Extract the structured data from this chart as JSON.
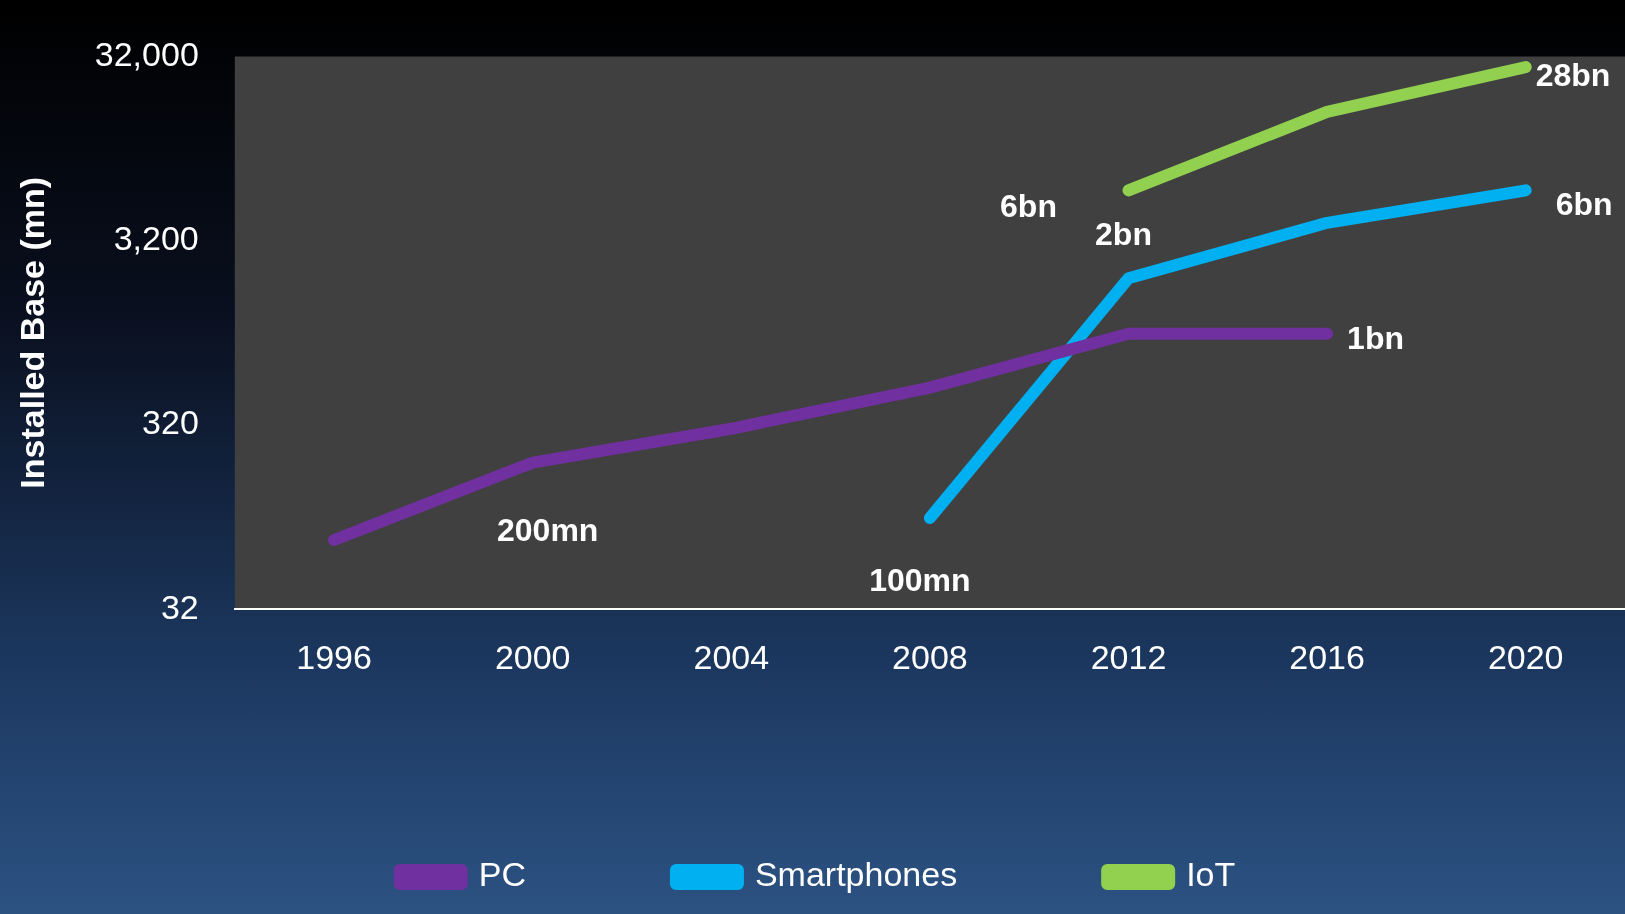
{
  "chart_data": {
    "type": "line",
    "ylabel": "Installed Base (mn)",
    "log": true,
    "xlim": [
      1994,
      2022
    ],
    "xticks": [
      1996,
      2000,
      2004,
      2008,
      2012,
      2016,
      2020
    ],
    "ylim": [
      32,
      32000
    ],
    "yticks": [
      32,
      320,
      {
        "value": 3200,
        "label": "3,200"
      },
      {
        "value": 32000,
        "label": "32,000"
      }
    ],
    "series": [
      {
        "name": "PC",
        "color": "#7030a0",
        "x": [
          1996,
          2000,
          2004,
          2008,
          2012,
          2016
        ],
        "values": [
          76,
          200,
          305,
          510,
          1000,
          1000
        ]
      },
      {
        "name": "Smartphones",
        "color": "#00b0f0",
        "x": [
          2008,
          2012,
          2016,
          2020
        ],
        "values": [
          100,
          2000,
          4000,
          6000
        ]
      },
      {
        "name": "IoT",
        "color": "#92d050",
        "x": [
          2012,
          2016,
          2020
        ],
        "values": [
          6000,
          16000,
          28000
        ]
      }
    ],
    "annotations": [
      {
        "text": "200mn",
        "x": 2000,
        "y": 200
      },
      {
        "text": "100mn",
        "x": 2008,
        "y": 100
      },
      {
        "text": "2bn",
        "x": 2012,
        "y": 2000
      },
      {
        "text": "1bn",
        "x": 2016,
        "y": 1000
      },
      {
        "text": "6bn",
        "x": 2012,
        "y": 6000
      },
      {
        "text": "6bn",
        "x": 2020,
        "y": 6000
      },
      {
        "text": "28bn",
        "x": 2020,
        "y": 28000
      }
    ],
    "grid": false,
    "legend": "bottom",
    "marker": "none",
    "line_style": "solid"
  }
}
